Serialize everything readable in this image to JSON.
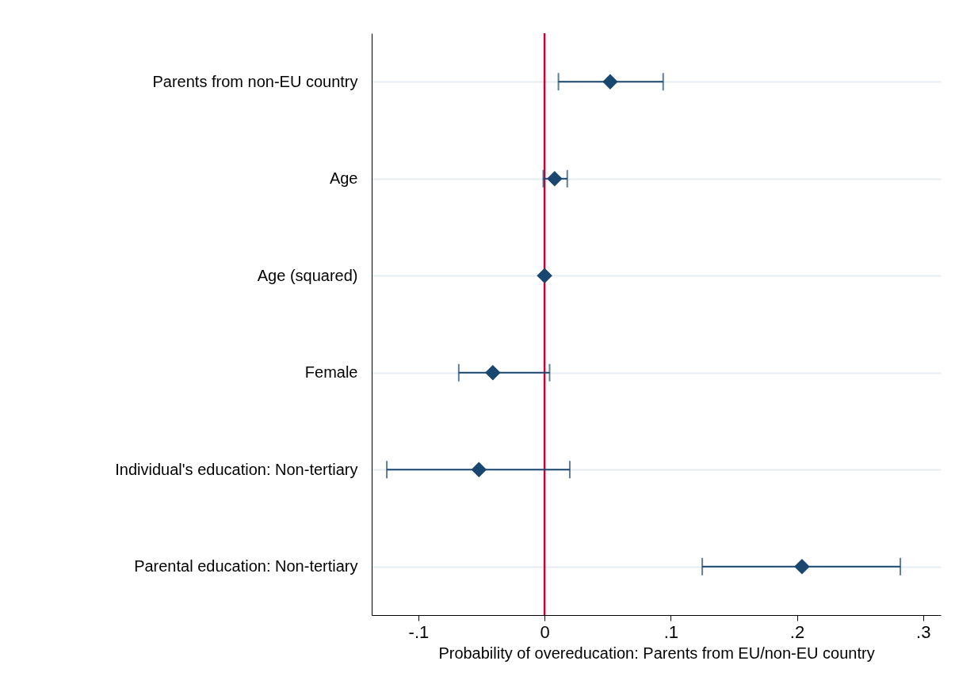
{
  "chart_data": {
    "type": "scatter",
    "orientation": "horizontal",
    "categories": [
      "Parents from non-EU country",
      "Age",
      "Age (squared)",
      "Female",
      "Individual's education: Non-tertiary",
      "Parental education: Non-tertiary"
    ],
    "values": [
      0.052,
      0.008,
      0,
      -0.041,
      -0.052,
      0.204
    ],
    "errors": [
      [
        0.011,
        0.094
      ],
      [
        -0.001,
        0.018
      ],
      null,
      [
        -0.068,
        0.004
      ],
      [
        -0.125,
        0.02
      ],
      [
        0.125,
        0.282
      ]
    ],
    "color": "#1a476f",
    "marker": "diamond",
    "xlabel": "Probability of overeducation: Parents from EU/non-EU country",
    "xlim": [
      -0.137,
      0.314
    ],
    "xticks": [
      {
        "value": -0.1,
        "label": "-.1"
      },
      0,
      {
        "value": 0.1,
        "label": ".1"
      },
      {
        "value": 0.2,
        "label": ".2"
      },
      {
        "value": 0.3,
        "label": ".3"
      }
    ],
    "grid": "y",
    "ref_lines": [
      {
        "axis": "x",
        "value": 0,
        "color": "#c10534"
      }
    ]
  }
}
